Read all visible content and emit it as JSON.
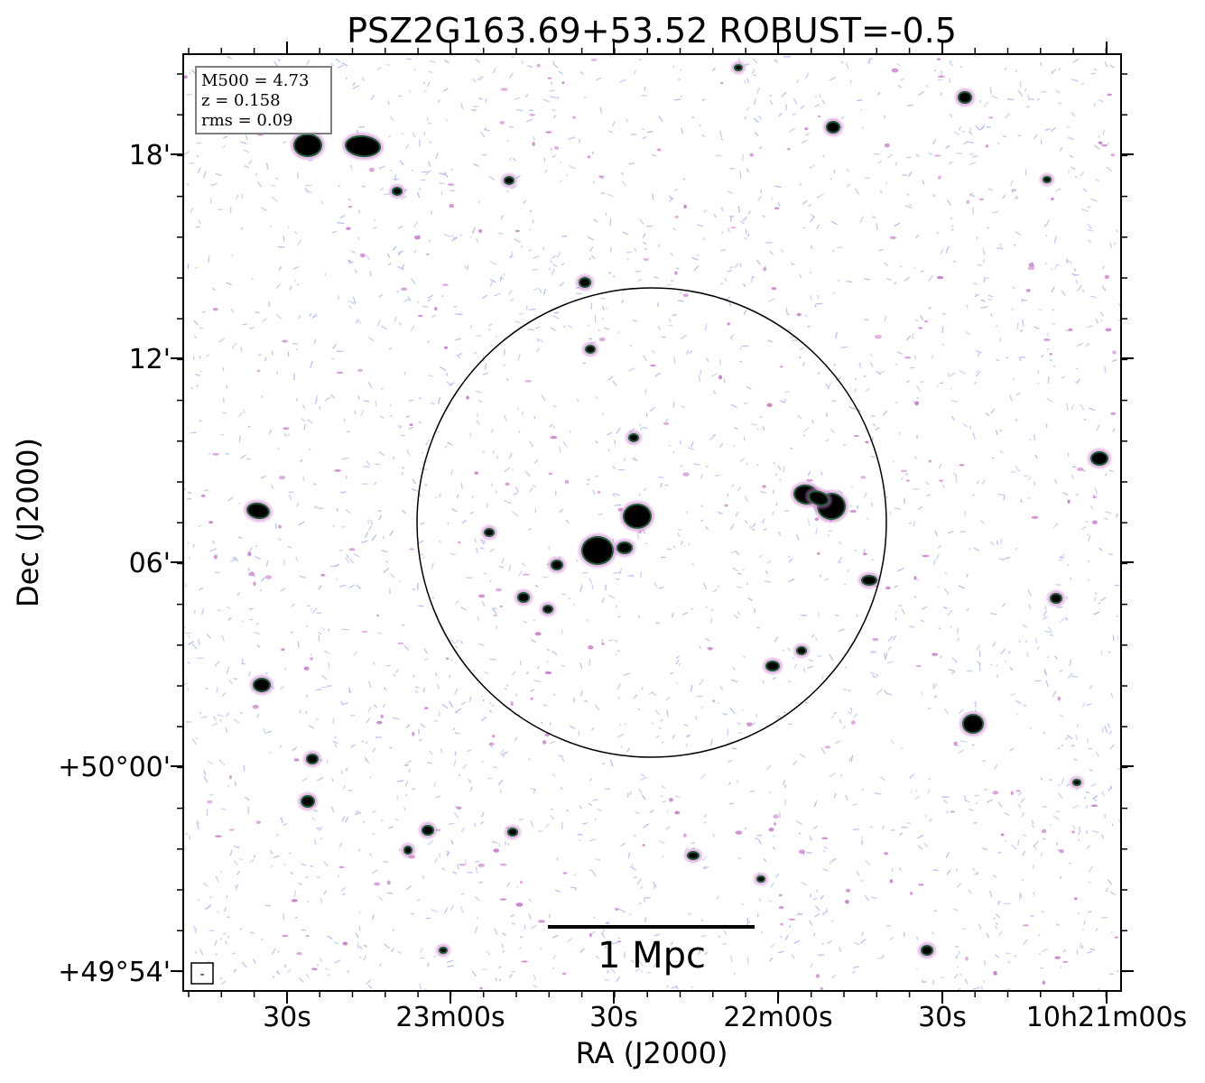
{
  "title": "PSZ2G163.69+53.52 ROBUST=-0.5",
  "xlabel": "RA (J2000)",
  "ylabel": "Dec (J2000)",
  "x_ticks": [
    "30s",
    "23m00s",
    "30s",
    "22m00s",
    "30s",
    "10h21m00s"
  ],
  "y_ticks": [
    "18'",
    "12'",
    "06'",
    "+50°00'",
    "+49°54'"
  ],
  "info_box": {
    "m500": "M500 = 4.73",
    "z": "z = 0.158",
    "rms": "rms = 0.09"
  },
  "scale_bar_label": "1 Mpc",
  "beam_marker": "-",
  "colors": {
    "background": "#ffffff",
    "noise_blue": "#aab8e6",
    "noise_pink": "#c678c8",
    "source_green": "#1f5a36",
    "source_core": "#000000",
    "circle": "#000000"
  }
}
